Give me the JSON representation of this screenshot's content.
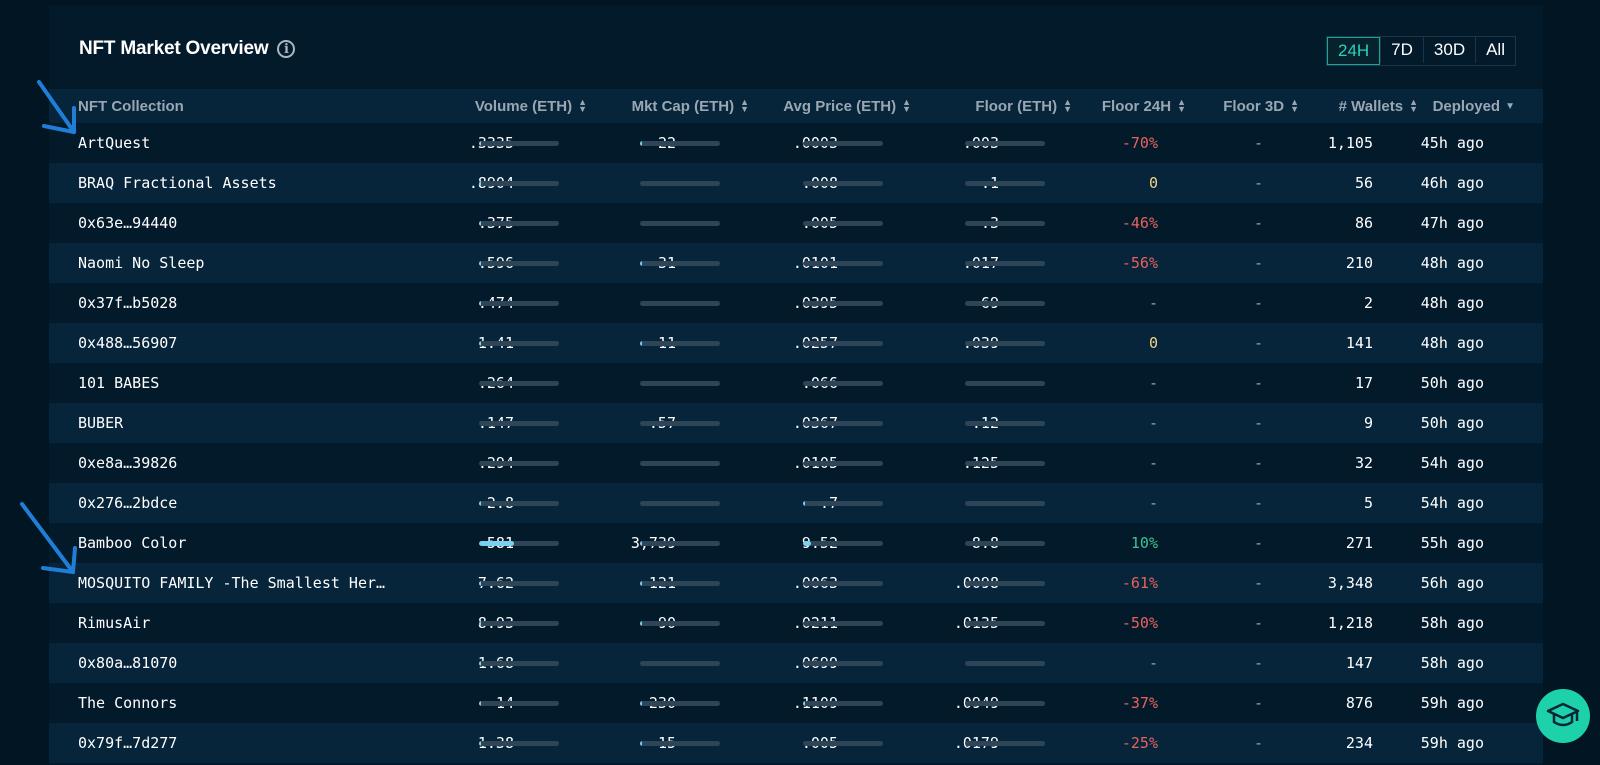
{
  "header": {
    "title": "NFT Market Overview",
    "info_icon": "info-icon",
    "ranges": [
      "24H",
      "7D",
      "30D",
      "All"
    ],
    "active_range": "24H"
  },
  "columns": {
    "collection": "NFT Collection",
    "volume": "Volume (ETH)",
    "mktcap": "Mkt Cap (ETH)",
    "avgprice": "Avg Price (ETH)",
    "floor": "Floor (ETH)",
    "floor24": "Floor 24H",
    "floor3d": "Floor 3D",
    "wallets": "# Wallets",
    "deployed": "Deployed"
  },
  "rows": [
    {
      "name": "ArtQuest",
      "volume": ".3335",
      "volume_frac": 0.02,
      "mktcap": "22",
      "mktcap_frac": 0.01,
      "avg": ".0003",
      "avg_frac": 0.0,
      "floor": ".003",
      "floor_frac": 0.0,
      "f24": "-70%",
      "f24_kind": "neg",
      "f3d": "-",
      "wallets": "1,105",
      "deployed": "45h ago"
    },
    {
      "name": "BRAQ Fractional Assets",
      "volume": ".8904",
      "volume_frac": 0.02,
      "mktcap": "-",
      "mktcap_frac": 0.0,
      "avg": ".008",
      "avg_frac": 0.0,
      "floor": ".1",
      "floor_frac": 0.0,
      "f24": "0",
      "f24_kind": "zero",
      "f3d": "-",
      "wallets": "56",
      "deployed": "46h ago"
    },
    {
      "name": "0x63e…94440",
      "volume": ".375",
      "volume_frac": 0.02,
      "mktcap": "-",
      "mktcap_frac": 0.0,
      "avg": ".005",
      "avg_frac": 0.0,
      "floor": ".3",
      "floor_frac": 0.0,
      "f24": "-46%",
      "f24_kind": "neg",
      "f3d": "-",
      "wallets": "86",
      "deployed": "47h ago"
    },
    {
      "name": "Naomi No Sleep",
      "volume": ".596",
      "volume_frac": 0.02,
      "mktcap": "31",
      "mktcap_frac": 0.01,
      "avg": ".0101",
      "avg_frac": 0.0,
      "floor": ".017",
      "floor_frac": 0.0,
      "f24": "-56%",
      "f24_kind": "neg",
      "f3d": "-",
      "wallets": "210",
      "deployed": "48h ago"
    },
    {
      "name": "0x37f…b5028",
      "volume": ".474",
      "volume_frac": 0.02,
      "mktcap": "-",
      "mktcap_frac": 0.0,
      "avg": ".0395",
      "avg_frac": 0.0,
      "floor": "69",
      "floor_frac": 0.0,
      "f24": "-",
      "f24_kind": "dash",
      "f3d": "-",
      "wallets": "2",
      "deployed": "48h ago"
    },
    {
      "name": "0x488…56907",
      "volume": "1.41",
      "volume_frac": 0.02,
      "mktcap": "11",
      "mktcap_frac": 0.01,
      "avg": ".0257",
      "avg_frac": 0.0,
      "floor": ".039",
      "floor_frac": 0.0,
      "f24": "0",
      "f24_kind": "zero",
      "f3d": "-",
      "wallets": "141",
      "deployed": "48h ago"
    },
    {
      "name": "101 BABES",
      "volume": ".264",
      "volume_frac": 0.0,
      "mktcap": "-",
      "mktcap_frac": 0.0,
      "avg": ".066",
      "avg_frac": 0.0,
      "floor": "-",
      "floor_frac": 0.0,
      "f24": "-",
      "f24_kind": "dash",
      "f3d": "-",
      "wallets": "17",
      "deployed": "50h ago"
    },
    {
      "name": "BUBER",
      "volume": ".147",
      "volume_frac": 0.0,
      "mktcap": ".57",
      "mktcap_frac": 0.0,
      "avg": ".0367",
      "avg_frac": 0.0,
      "floor": ".12",
      "floor_frac": 0.0,
      "f24": "-",
      "f24_kind": "dash",
      "f3d": "-",
      "wallets": "9",
      "deployed": "50h ago"
    },
    {
      "name": "0xe8a…39826",
      "volume": ".294",
      "volume_frac": 0.0,
      "mktcap": "-",
      "mktcap_frac": 0.0,
      "avg": ".0105",
      "avg_frac": 0.0,
      "floor": ".125",
      "floor_frac": 0.0,
      "f24": "-",
      "f24_kind": "dash",
      "f3d": "-",
      "wallets": "32",
      "deployed": "54h ago"
    },
    {
      "name": "0x276…2bdce",
      "volume": "2.8",
      "volume_frac": 0.02,
      "mktcap": "-",
      "mktcap_frac": 0.0,
      "avg": ".7",
      "avg_frac": 0.02,
      "floor": "-",
      "floor_frac": 0.0,
      "f24": "-",
      "f24_kind": "dash",
      "f3d": "-",
      "wallets": "5",
      "deployed": "54h ago"
    },
    {
      "name": "Bamboo Color",
      "volume": "581",
      "volume_frac": 0.44,
      "mktcap": "3,739",
      "mktcap_frac": 0.02,
      "avg": "9.52",
      "avg_frac": 0.1,
      "floor": "8.8",
      "floor_frac": 0.0,
      "f24": "10%",
      "f24_kind": "pos",
      "f3d": "-",
      "wallets": "271",
      "deployed": "55h ago"
    },
    {
      "name": "MOSQUITO FAMILY -The Smallest Her…",
      "volume": "7.62",
      "volume_frac": 0.02,
      "mktcap": "121",
      "mktcap_frac": 0.02,
      "avg": ".0063",
      "avg_frac": 0.0,
      "floor": ".0098",
      "floor_frac": 0.0,
      "f24": "-61%",
      "f24_kind": "neg",
      "f3d": "-",
      "wallets": "3,348",
      "deployed": "56h ago"
    },
    {
      "name": "RimusAir",
      "volume": "8.93",
      "volume_frac": 0.02,
      "mktcap": "90",
      "mktcap_frac": 0.01,
      "avg": ".0211",
      "avg_frac": 0.0,
      "floor": ".0135",
      "floor_frac": 0.0,
      "f24": "-50%",
      "f24_kind": "neg",
      "f3d": "-",
      "wallets": "1,218",
      "deployed": "58h ago"
    },
    {
      "name": "0x80a…81070",
      "volume": "1.68",
      "volume_frac": 0.02,
      "mktcap": "-",
      "mktcap_frac": 0.0,
      "avg": ".0699",
      "avg_frac": 0.0,
      "floor": "-",
      "floor_frac": 0.0,
      "f24": "-",
      "f24_kind": "dash",
      "f3d": "-",
      "wallets": "147",
      "deployed": "58h ago"
    },
    {
      "name": "The Connors",
      "volume": "14",
      "volume_frac": 0.02,
      "mktcap": "230",
      "mktcap_frac": 0.02,
      "avg": ".1109",
      "avg_frac": 0.02,
      "floor": ".0949",
      "floor_frac": 0.0,
      "f24": "-37%",
      "f24_kind": "neg",
      "f3d": "-",
      "wallets": "876",
      "deployed": "59h ago"
    },
    {
      "name": "0x79f…7d277",
      "volume": "1.38",
      "volume_frac": 0.02,
      "mktcap": "15",
      "mktcap_frac": 0.01,
      "avg": ".005",
      "avg_frac": 0.0,
      "floor": ".0179",
      "floor_frac": 0.0,
      "f24": "-25%",
      "f24_kind": "neg",
      "f3d": "-",
      "wallets": "234",
      "deployed": "59h ago"
    }
  ],
  "colors": {
    "background": "#011523",
    "panel": "#031a2b",
    "row_alt": "#06243a",
    "accent": "#2ad1c0",
    "bar_fill": "#79d0ef",
    "negative": "#e8625d",
    "zero": "#f2d48a",
    "positive": "#3cc48f",
    "annotation_arrow": "#1f7fd8",
    "help_button": "#1dd1aa"
  },
  "help_button_icon": "graduation-cap-icon"
}
